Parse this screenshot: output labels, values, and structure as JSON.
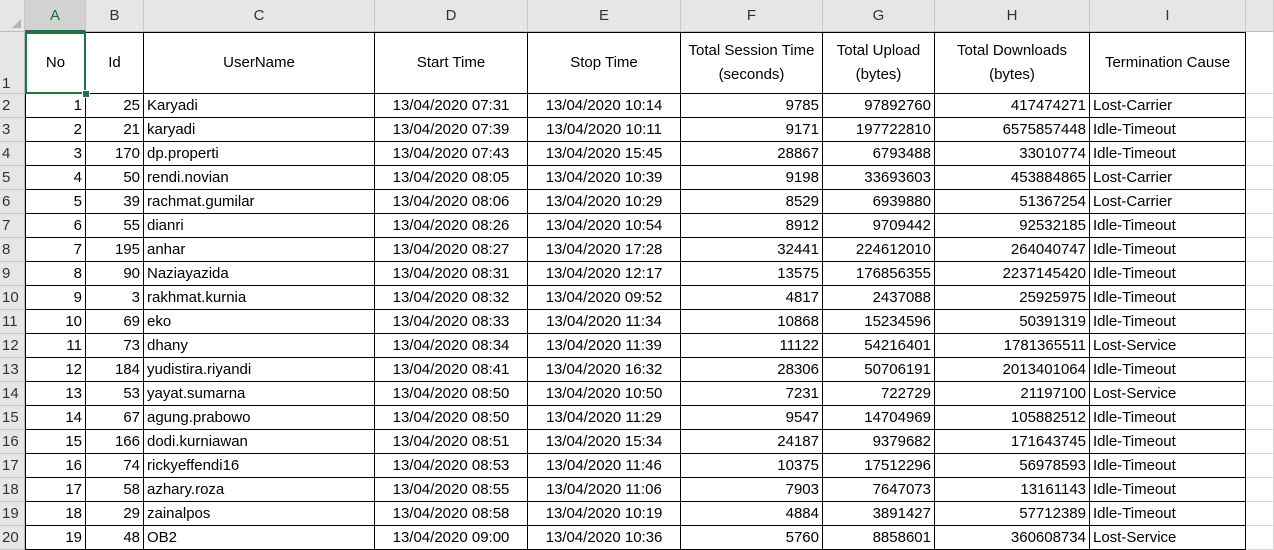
{
  "column_letters": [
    "A",
    "B",
    "C",
    "D",
    "E",
    "F",
    "G",
    "H",
    "I"
  ],
  "active_column": "A",
  "row_numbers": [
    "1",
    "2",
    "3",
    "4",
    "5",
    "6",
    "7",
    "8",
    "9",
    "10",
    "11",
    "12",
    "13",
    "14",
    "15",
    "16",
    "17",
    "18",
    "19",
    "20"
  ],
  "headers": [
    "No",
    "Id",
    "UserName",
    "Start Time",
    "Stop Time",
    "Total Session Time (seconds)",
    "Total Upload (bytes)",
    "Total Downloads (bytes)",
    "Termination Cause"
  ],
  "rows": [
    [
      "1",
      "25",
      "Karyadi",
      "13/04/2020 07:31",
      "13/04/2020 10:14",
      "9785",
      "97892760",
      "417474271",
      "Lost-Carrier"
    ],
    [
      "2",
      "21",
      "karyadi",
      "13/04/2020 07:39",
      "13/04/2020 10:11",
      "9171",
      "197722810",
      "6575857448",
      "Idle-Timeout"
    ],
    [
      "3",
      "170",
      "dp.properti",
      "13/04/2020 07:43",
      "13/04/2020 15:45",
      "28867",
      "6793488",
      "33010774",
      "Idle-Timeout"
    ],
    [
      "4",
      "50",
      "rendi.novian",
      "13/04/2020 08:05",
      "13/04/2020 10:39",
      "9198",
      "33693603",
      "453884865",
      "Lost-Carrier"
    ],
    [
      "5",
      "39",
      "rachmat.gumilar",
      "13/04/2020 08:06",
      "13/04/2020 10:29",
      "8529",
      "6939880",
      "51367254",
      "Lost-Carrier"
    ],
    [
      "6",
      "55",
      "dianri",
      "13/04/2020 08:26",
      "13/04/2020 10:54",
      "8912",
      "9709442",
      "92532185",
      "Idle-Timeout"
    ],
    [
      "7",
      "195",
      "anhar",
      "13/04/2020 08:27",
      "13/04/2020 17:28",
      "32441",
      "224612010",
      "264040747",
      "Idle-Timeout"
    ],
    [
      "8",
      "90",
      "Naziayazida",
      "13/04/2020 08:31",
      "13/04/2020 12:17",
      "13575",
      "176856355",
      "2237145420",
      "Idle-Timeout"
    ],
    [
      "9",
      "3",
      "rakhmat.kurnia",
      "13/04/2020 08:32",
      "13/04/2020 09:52",
      "4817",
      "2437088",
      "25925975",
      "Idle-Timeout"
    ],
    [
      "10",
      "69",
      "eko",
      "13/04/2020 08:33",
      "13/04/2020 11:34",
      "10868",
      "15234596",
      "50391319",
      "Idle-Timeout"
    ],
    [
      "11",
      "73",
      "dhany",
      "13/04/2020 08:34",
      "13/04/2020 11:39",
      "11122",
      "54216401",
      "1781365511",
      "Lost-Service"
    ],
    [
      "12",
      "184",
      "yudistira.riyandi",
      "13/04/2020 08:41",
      "13/04/2020 16:32",
      "28306",
      "50706191",
      "2013401064",
      "Idle-Timeout"
    ],
    [
      "13",
      "53",
      "yayat.sumarna",
      "13/04/2020 08:50",
      "13/04/2020 10:50",
      "7231",
      "722729",
      "21197100",
      "Lost-Service"
    ],
    [
      "14",
      "67",
      "agung.prabowo",
      "13/04/2020 08:50",
      "13/04/2020 11:29",
      "9547",
      "14704969",
      "105882512",
      "Idle-Timeout"
    ],
    [
      "15",
      "166",
      "dodi.kurniawan",
      "13/04/2020 08:51",
      "13/04/2020 15:34",
      "24187",
      "9379682",
      "171643745",
      "Idle-Timeout"
    ],
    [
      "16",
      "74",
      "rickyeffendi16",
      "13/04/2020 08:53",
      "13/04/2020 11:46",
      "10375",
      "17512296",
      "56978593",
      "Idle-Timeout"
    ],
    [
      "17",
      "58",
      "azhary.roza",
      "13/04/2020 08:55",
      "13/04/2020 11:06",
      "7903",
      "7647073",
      "13161143",
      "Idle-Timeout"
    ],
    [
      "18",
      "29",
      "zainalpos",
      "13/04/2020 08:58",
      "13/04/2020 10:19",
      "4884",
      "3891427",
      "57712389",
      "Idle-Timeout"
    ],
    [
      "19",
      "48",
      "OB2",
      "13/04/2020 09:00",
      "13/04/2020 10:36",
      "5760",
      "8858601",
      "360608734",
      "Lost-Service"
    ]
  ],
  "colors": {
    "selection": "#217346",
    "header_bg": "#e6e6e6"
  }
}
